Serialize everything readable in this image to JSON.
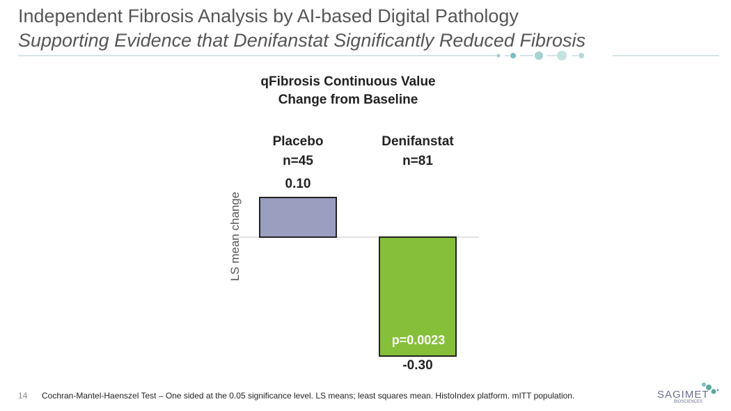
{
  "header": {
    "title": "Independent Fibrosis Analysis by AI-based Digital Pathology",
    "subtitle": "Supporting Evidence that Denifanstat Significantly Reduced Fibrosis"
  },
  "chart_data": {
    "type": "bar",
    "title": [
      "qFibrosis Continuous Value",
      "Change from Baseline"
    ],
    "categories": [
      {
        "name": "Placebo",
        "n": "n=45"
      },
      {
        "name": "Denifanstat",
        "n": "n=81"
      }
    ],
    "values": [
      0.1,
      -0.3
    ],
    "value_labels": [
      "0.10",
      "-0.30"
    ],
    "ylabel": "LS mean change",
    "ylim": [
      -0.3,
      0.1
    ],
    "colors": [
      "#9a9fc0",
      "#86c03a"
    ],
    "annotation": "p=0.0023"
  },
  "footer": {
    "page": "14",
    "note": "Cochran-Mantel-Haenszel Test – One sided at the 0.05 significance level.  LS means; least squares mean.  HistoIndex platform. mITT population."
  },
  "logo": {
    "name": "SAGIMET",
    "sub": "BIOSCIENCES"
  }
}
